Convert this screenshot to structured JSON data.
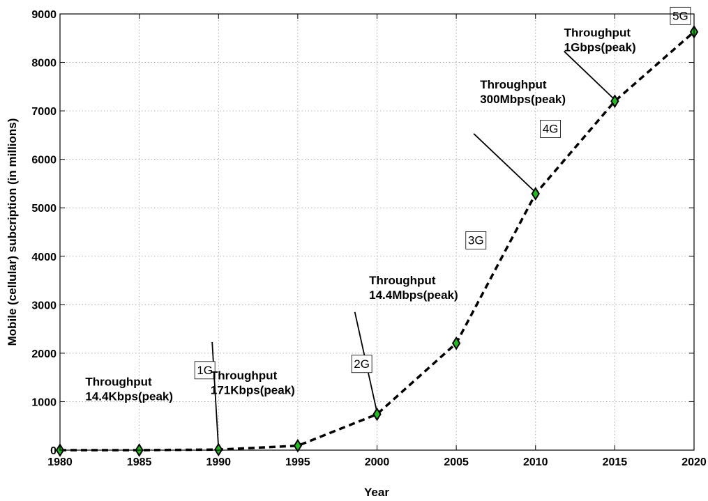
{
  "chart_data": {
    "type": "line",
    "title": "",
    "xlabel": "Year",
    "ylabel": "Mobile (cellular) subcription (in millions)",
    "xlim": [
      1980,
      2020
    ],
    "ylim": [
      0,
      9000
    ],
    "xticks": [
      1980,
      1985,
      1990,
      1995,
      2000,
      2005,
      2010,
      2015,
      2020
    ],
    "yticks": [
      0,
      1000,
      2000,
      3000,
      4000,
      5000,
      6000,
      7000,
      8000,
      9000
    ],
    "grid": true,
    "series": [
      {
        "x": [
          1980,
          1985,
          1990,
          1995,
          2000,
          2005,
          2010,
          2015,
          2020
        ],
        "y": [
          0,
          0,
          11,
          91,
          740,
          2205,
          5290,
          7200,
          8630
        ],
        "line_style": "dashed",
        "line_color": "#000000",
        "marker": "diamond",
        "marker_color": "#22bb22"
      }
    ],
    "annotations": [
      {
        "kind": "label",
        "lines": [
          "Throughput",
          "14.4Kbps(peak)"
        ],
        "x": 1981.6,
        "y": 1330
      },
      {
        "kind": "box",
        "text": "1G",
        "x": 1988.5,
        "y": 1570
      },
      {
        "kind": "label",
        "lines": [
          "Throughput",
          "171Kbps(peak)"
        ],
        "x": 1989.5,
        "y": 1460
      },
      {
        "kind": "box",
        "text": "2G",
        "x": 1998.4,
        "y": 1700
      },
      {
        "kind": "label",
        "lines": [
          "Throughput",
          "14.4Mbps(peak)"
        ],
        "x": 1999.5,
        "y": 3420
      },
      {
        "kind": "box",
        "text": "3G",
        "x": 2005.6,
        "y": 4250
      },
      {
        "kind": "label",
        "lines": [
          "Throughput",
          "300Mbps(peak)"
        ],
        "x": 2006.5,
        "y": 7460
      },
      {
        "kind": "box",
        "text": "4G",
        "x": 2010.3,
        "y": 6550
      },
      {
        "kind": "label",
        "lines": [
          "Throughput",
          "1Gbps(peak)"
        ],
        "x": 2011.8,
        "y": 8530
      },
      {
        "kind": "box",
        "text": "5G",
        "x": 2018.5,
        "y": 8880
      }
    ],
    "pointers": [
      {
        "from": [
          1989.6,
          2230
        ],
        "to": [
          1990.0,
          40
        ]
      },
      {
        "from": [
          1998.6,
          2850
        ],
        "to": [
          2000.0,
          780
        ]
      },
      {
        "from": [
          2006.1,
          6530
        ],
        "to": [
          2010.0,
          5320
        ]
      },
      {
        "from": [
          2011.8,
          8230
        ],
        "to": [
          2015.0,
          7230
        ]
      }
    ]
  }
}
